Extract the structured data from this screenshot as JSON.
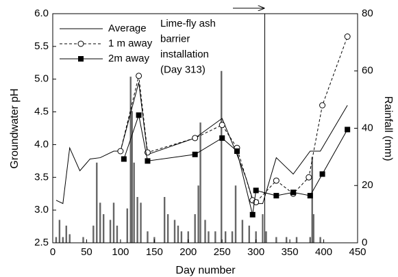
{
  "chart_data": {
    "type": "line",
    "xlabel": "Day number",
    "ylabel": "Groundwater pH",
    "y2label": "Rainfall (mm)",
    "xlim": [
      0,
      450
    ],
    "xticks": [
      0,
      50,
      100,
      150,
      200,
      250,
      300,
      350,
      400,
      450
    ],
    "ylim": [
      2.5,
      6.0
    ],
    "yticks": [
      2.5,
      {
        "value": 3,
        "label": "3.0"
      },
      3.5,
      {
        "value": 4,
        "label": "4.0"
      },
      4.5,
      {
        "value": 5,
        "label": "5.0"
      },
      5.5,
      {
        "value": 6,
        "label": "6.0"
      }
    ],
    "y2lim": [
      0,
      80
    ],
    "y2ticks": [
      0,
      20,
      40,
      60,
      80
    ],
    "legend": "upper left",
    "series": [
      {
        "name": "Average",
        "color": "#000000",
        "style": "solid",
        "marker": "none",
        "x": [
          5,
          15,
          25,
          40,
          55,
          70,
          90,
          100,
          127,
          140,
          210,
          250,
          270,
          285,
          297,
          310,
          330,
          345,
          355,
          380,
          395,
          435
        ],
        "values": [
          3.15,
          3.1,
          3.95,
          3.6,
          3.78,
          3.8,
          3.9,
          3.9,
          4.95,
          3.85,
          4.1,
          4.4,
          3.9,
          3.5,
          3.1,
          3.1,
          3.8,
          3.65,
          3.55,
          3.9,
          3.9,
          4.6
        ]
      },
      {
        "name": "1 m away",
        "color": "#000000",
        "style": "dashed",
        "marker": "open-circle",
        "x": [
          100,
          127,
          140,
          210,
          250,
          272,
          295,
          300,
          330,
          355,
          378,
          398,
          435
        ],
        "values": [
          3.9,
          5.05,
          3.88,
          4.1,
          4.3,
          3.95,
          3.15,
          3.12,
          3.45,
          3.25,
          3.5,
          4.6,
          5.65
        ]
      },
      {
        "name": "2m away",
        "color": "#000000",
        "style": "solid",
        "marker": "filled-square",
        "x": [
          105,
          127,
          140,
          210,
          250,
          272,
          295,
          300,
          330,
          355,
          380,
          398,
          435
        ],
        "values": [
          3.78,
          4.45,
          3.75,
          3.85,
          4.1,
          3.9,
          2.93,
          3.3,
          3.22,
          3.27,
          3.22,
          3.55,
          4.23
        ]
      },
      {
        "type": "bar",
        "axis": "y2",
        "color": "#666666",
        "x": [
          5,
          10,
          15,
          20,
          25,
          45,
          60,
          65,
          70,
          75,
          85,
          90,
          95,
          110,
          115,
          117,
          120,
          125,
          130,
          140,
          150,
          165,
          170,
          180,
          185,
          190,
          200,
          210,
          215,
          218,
          225,
          230,
          240,
          249,
          255,
          265,
          270,
          280,
          290,
          300,
          310,
          315,
          330,
          345,
          360,
          380,
          383,
          385,
          395
        ],
        "values": [
          2,
          8,
          2,
          6,
          3,
          2,
          6,
          28,
          14,
          10,
          8,
          14,
          6,
          12,
          58,
          46,
          28,
          16,
          14,
          4,
          2,
          16,
          10,
          8,
          6,
          4,
          4,
          10,
          20,
          42,
          8,
          4,
          4,
          60,
          4,
          4,
          20,
          8,
          6,
          4,
          10,
          4,
          2,
          2,
          2,
          2,
          30,
          10,
          2
        ]
      }
    ],
    "annotation": {
      "x": 313,
      "lines": [
        "Lime-fly ash",
        "barrier",
        "installation",
        "(Day 313)"
      ]
    }
  }
}
